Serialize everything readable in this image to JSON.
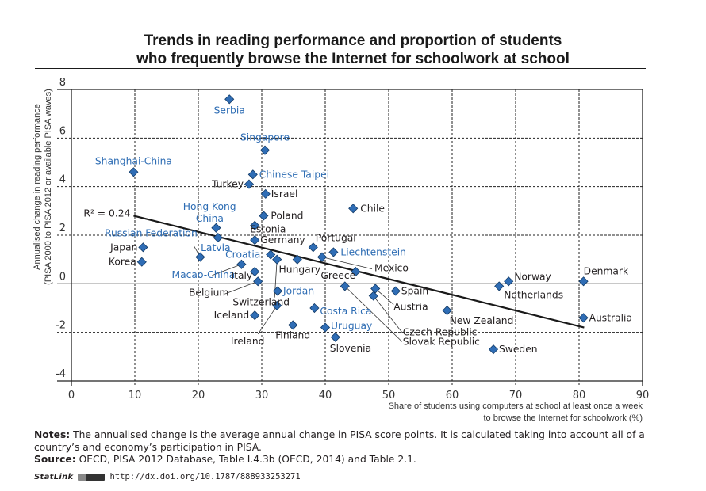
{
  "title_lines": [
    "Trends in reading performance and proportion of students",
    "who frequently browse the Internet for schoolwork at school"
  ],
  "chart_data": {
    "type": "scatter",
    "title": "Trends in reading performance and proportion of students who frequently browse the Internet for schoolwork at school",
    "xlabel_lines": [
      "Share of students using computers at school at least once a week",
      "to browse the Internet for schoolwork (%)"
    ],
    "ylabel_lines": [
      "Annualised change in reading performance",
      "(PISA 2000 to PISA 2012 or available PISA waves)"
    ],
    "xlim": [
      0,
      90
    ],
    "ylim": [
      -4,
      8
    ],
    "xticks": [
      0,
      10,
      20,
      30,
      40,
      50,
      60,
      70,
      80,
      90
    ],
    "yticks": [
      -4,
      -2,
      0,
      2,
      4,
      6,
      8
    ],
    "grid": true,
    "marker_color": "#2f6db5",
    "highlight_label_color": "#2e6db4",
    "default_label_color": "#231f20",
    "trendline": {
      "label": "R² = 0.24",
      "x": [
        9.8,
        80.8
      ],
      "y": [
        2.8,
        -1.8
      ]
    },
    "points": [
      {
        "name": "Serbia",
        "x": 24.9,
        "y": 7.6,
        "highlight": true
      },
      {
        "name": "Singapore",
        "x": 30.5,
        "y": 5.5,
        "highlight": true
      },
      {
        "name": "Shanghai-China",
        "x": 9.8,
        "y": 4.6,
        "highlight": true
      },
      {
        "name": "Chinese Taipei",
        "x": 28.6,
        "y": 4.5,
        "highlight": true
      },
      {
        "name": "Turkey",
        "x": 28.0,
        "y": 4.1,
        "highlight": false
      },
      {
        "name": "Israel",
        "x": 30.6,
        "y": 3.7,
        "highlight": false
      },
      {
        "name": "Chile",
        "x": 44.4,
        "y": 3.1,
        "highlight": false
      },
      {
        "name": "Poland",
        "x": 30.3,
        "y": 2.8,
        "highlight": false
      },
      {
        "name": "Estonia",
        "x": 28.9,
        "y": 2.4,
        "highlight": false
      },
      {
        "name": "Hong Kong-China",
        "x": 22.8,
        "y": 2.3,
        "highlight": true
      },
      {
        "name": "Latvia",
        "x": 23.1,
        "y": 1.9,
        "highlight": true
      },
      {
        "name": "Germany",
        "x": 28.9,
        "y": 1.8,
        "highlight": false
      },
      {
        "name": "Portugal",
        "x": 38.1,
        "y": 1.5,
        "highlight": false
      },
      {
        "name": "Japan",
        "x": 11.3,
        "y": 1.5,
        "highlight": false
      },
      {
        "name": "Liechtenstein",
        "x": 41.3,
        "y": 1.3,
        "highlight": true
      },
      {
        "name": "Croatia",
        "x": 31.4,
        "y": 1.2,
        "highlight": true
      },
      {
        "name": "Russian Federation",
        "x": 20.3,
        "y": 1.1,
        "highlight": true
      },
      {
        "name": "Mexico",
        "x": 39.5,
        "y": 1.1,
        "highlight": false
      },
      {
        "name": "Switzerland",
        "x": 32.4,
        "y": 1.0,
        "highlight": false
      },
      {
        "name": "Hungary",
        "x": 35.6,
        "y": 1.0,
        "highlight": false
      },
      {
        "name": "Korea",
        "x": 11.1,
        "y": 0.9,
        "highlight": false
      },
      {
        "name": "Macao-China",
        "x": 26.8,
        "y": 0.8,
        "highlight": true
      },
      {
        "name": "Italy",
        "x": 28.9,
        "y": 0.5,
        "highlight": false
      },
      {
        "name": "Greece",
        "x": 44.8,
        "y": 0.5,
        "highlight": false
      },
      {
        "name": "Belgium",
        "x": 29.4,
        "y": 0.1,
        "highlight": false
      },
      {
        "name": "Norway",
        "x": 68.9,
        "y": 0.1,
        "highlight": false
      },
      {
        "name": "Denmark",
        "x": 80.7,
        "y": 0.1,
        "highlight": false
      },
      {
        "name": "Slovak Republic",
        "x": 43.1,
        "y": -0.1,
        "highlight": false
      },
      {
        "name": "Netherlands",
        "x": 67.4,
        "y": -0.1,
        "highlight": false
      },
      {
        "name": "Austria",
        "x": 47.9,
        "y": -0.2,
        "highlight": false
      },
      {
        "name": "Jordan",
        "x": 32.5,
        "y": -0.3,
        "highlight": true
      },
      {
        "name": "Spain",
        "x": 51.1,
        "y": -0.3,
        "highlight": false
      },
      {
        "name": "Czech Republic",
        "x": 47.6,
        "y": -0.5,
        "highlight": false
      },
      {
        "name": "Ireland",
        "x": 32.4,
        "y": -0.9,
        "highlight": false
      },
      {
        "name": "Costa Rica",
        "x": 38.3,
        "y": -1.0,
        "highlight": true
      },
      {
        "name": "New Zealand",
        "x": 59.2,
        "y": -1.1,
        "highlight": false
      },
      {
        "name": "Iceland",
        "x": 28.9,
        "y": -1.3,
        "highlight": false
      },
      {
        "name": "Australia",
        "x": 80.7,
        "y": -1.4,
        "highlight": false
      },
      {
        "name": "Finland",
        "x": 34.9,
        "y": -1.7,
        "highlight": false
      },
      {
        "name": "Uruguay",
        "x": 40.0,
        "y": -1.8,
        "highlight": true
      },
      {
        "name": "Slovenia",
        "x": 41.6,
        "y": -2.2,
        "highlight": false
      },
      {
        "name": "Sweden",
        "x": 66.5,
        "y": -2.7,
        "highlight": false
      }
    ]
  },
  "notes": {
    "notes_label": "Notes:",
    "notes_text": " The annualised change is the average annual change in PISA score points. It is calculated taking into account all of a country’s and economy’s participation in PISA.",
    "source_label": "Source:",
    "source_text": " OECD, PISA 2012 Database, Table I.4.3b (OECD, 2014) and Table 2.1."
  },
  "statlink": {
    "name": "StatLink",
    "url": "http://dx.doi.org/10.1787/888933253271"
  }
}
